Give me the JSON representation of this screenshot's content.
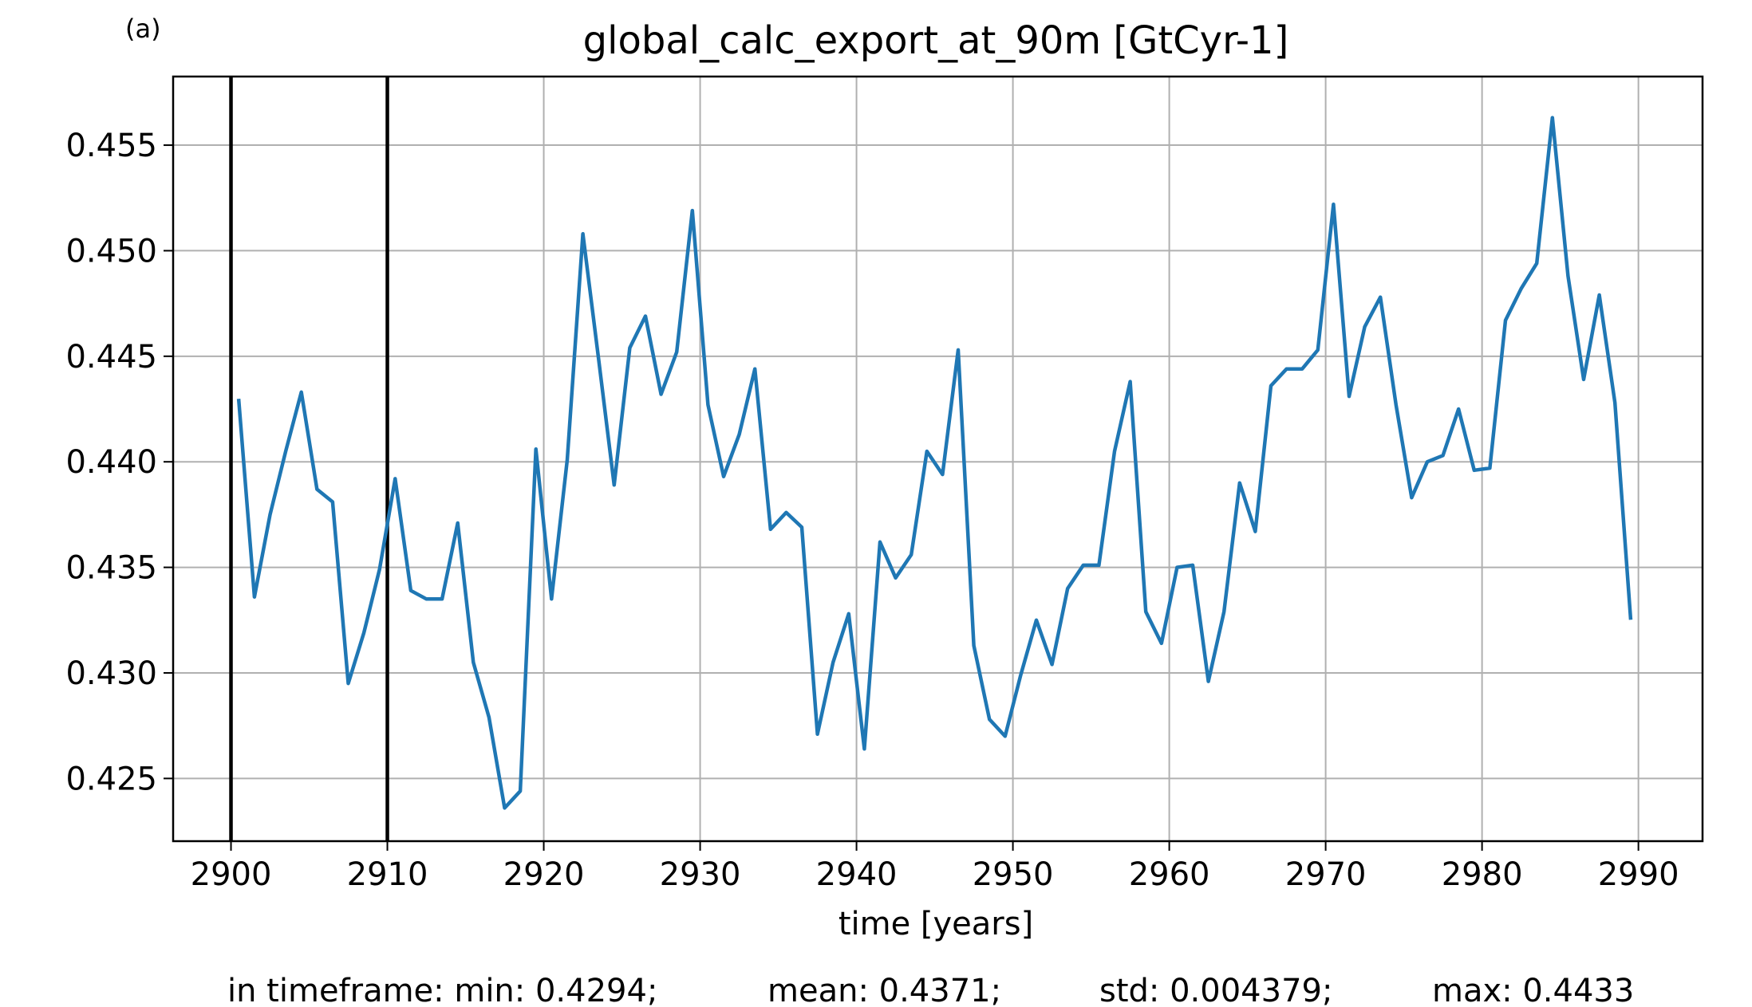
{
  "panel_label": "(a)",
  "stats": {
    "min": "in timeframe: min: 0.4294;",
    "mean": "mean: 0.4371;",
    "std": "std: 0.004379;",
    "max": "max: 0.4433"
  },
  "colors": {
    "line": "#1f77b4",
    "grid": "#b0b0b0",
    "marker_lines": "#000000",
    "axes": "#000000"
  },
  "chart_data": {
    "type": "line",
    "title": "global_calc_export_at_90m [GtCyr-1]",
    "xlabel": "time [years]",
    "ylabel": "",
    "xlim": [
      2896.3,
      2994.1
    ],
    "ylim": [
      0.42203,
      0.45825
    ],
    "xticks": [
      2900,
      2910,
      2920,
      2930,
      2940,
      2950,
      2960,
      2970,
      2980,
      2990
    ],
    "xtick_labels": [
      "2900",
      "2910",
      "2920",
      "2930",
      "2940",
      "2950",
      "2960",
      "2970",
      "2980",
      "2990"
    ],
    "yticks": [
      0.425,
      0.43,
      0.435,
      0.44,
      0.445,
      0.45,
      0.455
    ],
    "ytick_labels": [
      "0.425",
      "0.430",
      "0.435",
      "0.440",
      "0.445",
      "0.450",
      "0.455"
    ],
    "grid": true,
    "vertical_lines": [
      2900,
      2910
    ],
    "series": [
      {
        "x": [
          2900.5,
          2901.5,
          2902.5,
          2903.5,
          2904.5,
          2905.5,
          2906.5,
          2907.5,
          2908.5,
          2909.5,
          2910.5,
          2911.5,
          2912.5,
          2913.5,
          2914.5,
          2915.5,
          2916.5,
          2917.5,
          2918.5,
          2919.5,
          2920.5,
          2921.5,
          2922.5,
          2923.5,
          2924.5,
          2925.5,
          2926.5,
          2927.5,
          2928.5,
          2929.5,
          2930.5,
          2931.5,
          2932.5,
          2933.5,
          2934.5,
          2935.5,
          2936.5,
          2937.5,
          2938.5,
          2939.5,
          2940.5,
          2941.5,
          2942.5,
          2943.5,
          2944.5,
          2945.5,
          2946.5,
          2947.5,
          2948.5,
          2949.5,
          2950.5,
          2951.5,
          2952.5,
          2953.5,
          2954.5,
          2955.5,
          2956.5,
          2957.5,
          2958.5,
          2959.5,
          2960.5,
          2961.5,
          2962.5,
          2963.5,
          2964.5,
          2965.5,
          2966.5,
          2967.5,
          2968.5,
          2969.5,
          2970.5,
          2971.5,
          2972.5,
          2973.5,
          2974.5,
          2975.5,
          2976.5,
          2977.5,
          2978.5,
          2979.5,
          2980.5,
          2981.5,
          2982.5,
          2983.5,
          2984.5,
          2985.5,
          2986.5,
          2987.5,
          2988.5,
          2989.5
        ],
        "values": [
          0.4429,
          0.4336,
          0.4375,
          0.4405,
          0.4433,
          0.4387,
          0.4381,
          0.4295,
          0.4319,
          0.4349,
          0.4392,
          0.4339,
          0.4335,
          0.4335,
          0.4371,
          0.4305,
          0.4279,
          0.4236,
          0.4244,
          0.4406,
          0.4335,
          0.4401,
          0.4508,
          0.4449,
          0.4389,
          0.4454,
          0.4469,
          0.4432,
          0.4452,
          0.4519,
          0.4427,
          0.4393,
          0.4413,
          0.4444,
          0.4368,
          0.4376,
          0.4369,
          0.4271,
          0.4305,
          0.4328,
          0.4264,
          0.4362,
          0.4345,
          0.4356,
          0.4405,
          0.4394,
          0.4453,
          0.4313,
          0.4278,
          0.427,
          0.4299,
          0.4325,
          0.4304,
          0.434,
          0.4351,
          0.4351,
          0.4405,
          0.4438,
          0.4329,
          0.4314,
          0.435,
          0.4351,
          0.4296,
          0.4329,
          0.439,
          0.4367,
          0.4436,
          0.4444,
          0.4444,
          0.4453,
          0.4522,
          0.4431,
          0.4464,
          0.4478,
          0.4427,
          0.4383,
          0.44,
          0.4403,
          0.4425,
          0.4396,
          0.4397,
          0.4467,
          0.4482,
          0.4494,
          0.4563,
          0.4488,
          0.4439,
          0.4479,
          0.4428,
          0.4326
        ]
      }
    ]
  }
}
